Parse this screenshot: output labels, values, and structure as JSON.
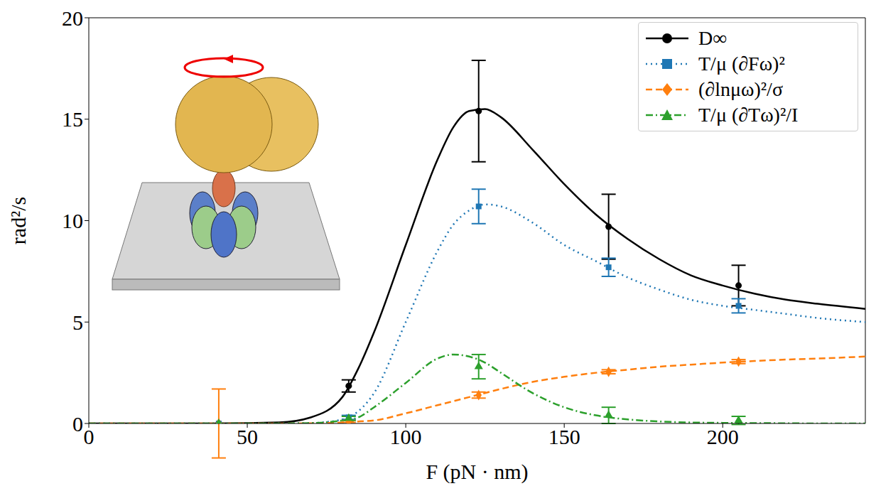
{
  "chart_data": {
    "type": "line",
    "xlabel": "F (pN · nm)",
    "ylabel": "rad²/s",
    "xlim": [
      0,
      245
    ],
    "xticks": [
      0,
      50,
      100,
      150,
      200
    ],
    "ylim": [
      0,
      20
    ],
    "yticks": [
      0,
      5,
      10,
      15,
      20
    ],
    "grid": false,
    "legend": "top right",
    "x": [
      0,
      40,
      60,
      70,
      80,
      85,
      90,
      100,
      110,
      115,
      120,
      125,
      130,
      140,
      150,
      160,
      170,
      180,
      190,
      200,
      210,
      220,
      230,
      245
    ],
    "series": [
      {
        "name": "D∞",
        "color": "#000000",
        "marker": "circle",
        "line_style": "solid",
        "values": [
          0,
          0,
          0.05,
          0.3,
          1.3,
          2.7,
          4.5,
          8.8,
          13,
          14.6,
          15.4,
          15.5,
          15.1,
          13.5,
          11.8,
          10.3,
          9.1,
          8.1,
          7.3,
          6.8,
          6.4,
          6.1,
          5.9,
          5.65
        ],
        "points": {
          "x": [
            41,
            82,
            123,
            164,
            205
          ],
          "values": [
            0,
            1.85,
            15.4,
            9.7,
            6.8
          ],
          "error": [
            0,
            0.3,
            2.5,
            1.6,
            1.0
          ]
        }
      },
      {
        "name": "T/μ (∂Fω)²",
        "color": "#1f77b4",
        "marker": "square",
        "line_style": "dotted",
        "values": [
          0,
          0,
          0,
          0.02,
          0.2,
          0.6,
          1.5,
          5,
          8.5,
          9.8,
          10.5,
          10.8,
          10.7,
          9.9,
          8.8,
          8,
          7.2,
          6.6,
          6.1,
          5.8,
          5.6,
          5.4,
          5.2,
          5.0
        ],
        "points": {
          "x": [
            41,
            82,
            123,
            164,
            205
          ],
          "values": [
            0,
            0.3,
            10.7,
            7.7,
            5.8
          ],
          "error": [
            0,
            0.1,
            0.85,
            0.45,
            0.35
          ]
        }
      },
      {
        "name": "(∂lnμω)²/σ",
        "color": "#ff7f0e",
        "marker": "diamond",
        "line_style": "dashed",
        "values": [
          0,
          0,
          0,
          0.01,
          0.05,
          0.1,
          0.15,
          0.5,
          0.9,
          1.1,
          1.3,
          1.5,
          1.7,
          2.05,
          2.3,
          2.5,
          2.65,
          2.8,
          2.9,
          3.0,
          3.08,
          3.15,
          3.2,
          3.3
        ],
        "points": {
          "x": [
            41,
            82,
            123,
            164,
            205
          ],
          "values": [
            0,
            0.1,
            1.4,
            2.55,
            3.05
          ],
          "error": [
            1.7,
            0.05,
            0.15,
            0.1,
            0.1
          ]
        }
      },
      {
        "name": "T/μ (∂Tω)²/I",
        "color": "#2ca02c",
        "marker": "triangle",
        "line_style": "dashdot",
        "values": [
          0,
          0,
          0,
          0.02,
          0.15,
          0.3,
          0.8,
          2.0,
          3.2,
          3.4,
          3.3,
          3.0,
          2.5,
          1.5,
          0.8,
          0.4,
          0.2,
          0.1,
          0.05,
          0.03,
          0.02,
          0.01,
          0,
          0
        ],
        "points": {
          "x": [
            41,
            82,
            123,
            164,
            205
          ],
          "values": [
            0,
            0.25,
            2.8,
            0.4,
            0.15
          ],
          "error": [
            0,
            0.1,
            0.6,
            0.4,
            0.2
          ]
        }
      }
    ]
  }
}
